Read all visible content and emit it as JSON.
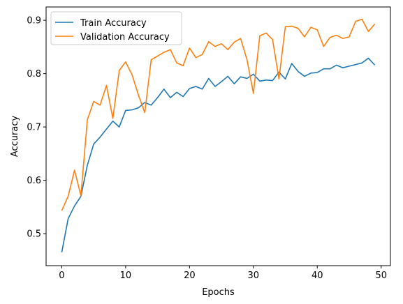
{
  "chart_data": {
    "type": "line",
    "title": "",
    "xlabel": "Epochs",
    "ylabel": "Accuracy",
    "xlim": [
      -2.45,
      51.45
    ],
    "ylim": [
      0.44,
      0.925
    ],
    "xticks": [
      0,
      10,
      20,
      30,
      40,
      50
    ],
    "yticks": [
      0.5,
      0.6,
      0.7,
      0.8,
      0.9
    ],
    "xtick_labels": [
      "0",
      "10",
      "20",
      "30",
      "40",
      "50"
    ],
    "ytick_labels": [
      "0.5",
      "0.6",
      "0.7",
      "0.8",
      "0.9"
    ],
    "grid": false,
    "legend_position": "top-left",
    "x": [
      0,
      1,
      2,
      3,
      4,
      5,
      6,
      7,
      8,
      9,
      10,
      11,
      12,
      13,
      14,
      15,
      16,
      17,
      18,
      19,
      20,
      21,
      22,
      23,
      24,
      25,
      26,
      27,
      28,
      29,
      30,
      31,
      32,
      33,
      34,
      35,
      36,
      37,
      38,
      39,
      40,
      41,
      42,
      43,
      44,
      45,
      46,
      47,
      48,
      49
    ],
    "series": [
      {
        "name": "Train Accuracy",
        "color": "#1f77b4",
        "values": [
          0.465,
          0.528,
          0.552,
          0.57,
          0.628,
          0.668,
          0.681,
          0.696,
          0.711,
          0.7,
          0.731,
          0.732,
          0.736,
          0.746,
          0.741,
          0.755,
          0.771,
          0.755,
          0.765,
          0.757,
          0.772,
          0.776,
          0.771,
          0.791,
          0.776,
          0.785,
          0.795,
          0.781,
          0.794,
          0.791,
          0.799,
          0.786,
          0.788,
          0.787,
          0.803,
          0.79,
          0.819,
          0.804,
          0.795,
          0.801,
          0.802,
          0.809,
          0.809,
          0.816,
          0.811,
          0.814,
          0.817,
          0.82,
          0.829,
          0.816
        ]
      },
      {
        "name": "Validation Accuracy",
        "color": "#ff7f0e",
        "values": [
          0.543,
          0.57,
          0.619,
          0.571,
          0.713,
          0.748,
          0.741,
          0.778,
          0.716,
          0.806,
          0.822,
          0.798,
          0.76,
          0.727,
          0.826,
          0.833,
          0.84,
          0.845,
          0.82,
          0.815,
          0.848,
          0.83,
          0.836,
          0.86,
          0.851,
          0.856,
          0.845,
          0.859,
          0.866,
          0.826,
          0.763,
          0.871,
          0.876,
          0.864,
          0.79,
          0.888,
          0.889,
          0.885,
          0.869,
          0.887,
          0.882,
          0.851,
          0.868,
          0.872,
          0.866,
          0.869,
          0.898,
          0.902,
          0.879,
          0.893
        ]
      }
    ]
  }
}
